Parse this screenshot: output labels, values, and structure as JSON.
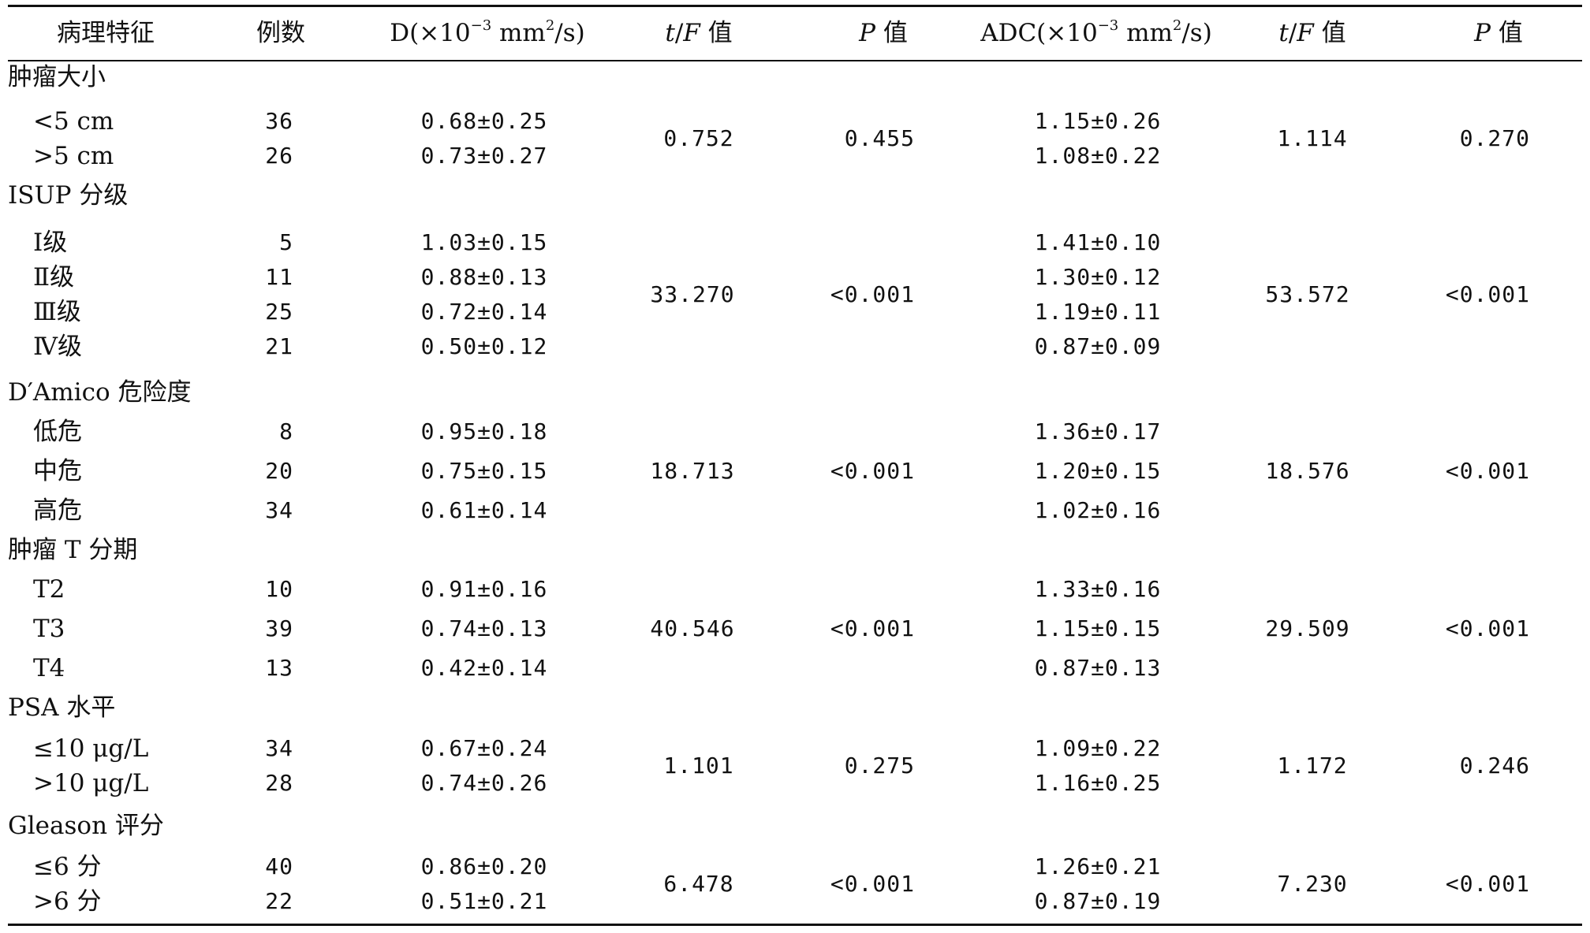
{
  "header": {
    "feature": "病理特征",
    "count": "例数",
    "d_prefix": "D(×10",
    "d_exp1": "−3",
    "d_mid": " mm",
    "d_exp2": "2",
    "d_suffix": "/s)",
    "tf1_t": "t",
    "tf1_slash": "/",
    "tf1_f": "F",
    "tf1_val": " 值",
    "p1_p": "P",
    "p1_val": " 值",
    "adc_prefix": "ADC(×10",
    "adc_exp1": "−3",
    "adc_mid": " mm",
    "adc_exp2": "2",
    "adc_suffix": "/s)",
    "tf2_t": "t",
    "tf2_slash": "/",
    "tf2_f": "F",
    "tf2_val": " 值",
    "p2_p": "P",
    "p2_val": " 值"
  },
  "groups": [
    {
      "name": "肿瘤大小",
      "t_f_d": "0.752",
      "p_d": "0.455",
      "t_f_adc": "1.114",
      "p_adc": "0.270",
      "rows": [
        {
          "label": "<5 cm",
          "n": "36",
          "d": "0.68±0.25",
          "adc": "1.15±0.26"
        },
        {
          "label": ">5 cm",
          "n": "26",
          "d": "0.73±0.27",
          "adc": "1.08±0.22"
        }
      ]
    },
    {
      "name": "ISUP 分级",
      "t_f_d": "33.270",
      "p_d": "<0.001",
      "t_f_adc": "53.572",
      "p_adc": "<0.001",
      "rows": [
        {
          "label": "Ⅰ级",
          "n": "5",
          "d": "1.03±0.15",
          "adc": "1.41±0.10"
        },
        {
          "label": "Ⅱ级",
          "n": "11",
          "d": "0.88±0.13",
          "adc": "1.30±0.12"
        },
        {
          "label": "Ⅲ级",
          "n": "25",
          "d": "0.72±0.14",
          "adc": "1.19±0.11"
        },
        {
          "label": "Ⅳ级",
          "n": "21",
          "d": "0.50±0.12",
          "adc": "0.87±0.09"
        }
      ]
    },
    {
      "name": "D′Amico 危险度",
      "t_f_d": "18.713",
      "p_d": "<0.001",
      "t_f_adc": "18.576",
      "p_adc": "<0.001",
      "rows": [
        {
          "label": "低危",
          "n": "8",
          "d": "0.95±0.18",
          "adc": "1.36±0.17"
        },
        {
          "label": "中危",
          "n": "20",
          "d": "0.75±0.15",
          "adc": "1.20±0.15"
        },
        {
          "label": "高危",
          "n": "34",
          "d": "0.61±0.14",
          "adc": "1.02±0.16"
        }
      ]
    },
    {
      "name": "肿瘤 T 分期",
      "t_f_d": "40.546",
      "p_d": "<0.001",
      "t_f_adc": "29.509",
      "p_adc": "<0.001",
      "rows": [
        {
          "label": "T2",
          "n": "10",
          "d": "0.91±0.16",
          "adc": "1.33±0.16"
        },
        {
          "label": "T3",
          "n": "39",
          "d": "0.74±0.13",
          "adc": "1.15±0.15"
        },
        {
          "label": "T4",
          "n": "13",
          "d": "0.42±0.14",
          "adc": "0.87±0.13"
        }
      ]
    },
    {
      "name": "PSA 水平",
      "t_f_d": "1.101",
      "p_d": "0.275",
      "t_f_adc": "1.172",
      "p_adc": "0.246",
      "rows": [
        {
          "label": "≤10 μg/L",
          "n": "34",
          "d": "0.67±0.24",
          "adc": "1.09±0.22"
        },
        {
          "label": ">10 μg/L",
          "n": "28",
          "d": "0.74±0.26",
          "adc": "1.16±0.25"
        }
      ]
    },
    {
      "name": "Gleason 评分",
      "t_f_d": "6.478",
      "p_d": "<0.001",
      "t_f_adc": "7.230",
      "p_adc": "<0.001",
      "rows": [
        {
          "label": "≤6 分",
          "n": "40",
          "d": "0.86±0.20",
          "adc": "1.26±0.21"
        },
        {
          "label": ">6 分",
          "n": "22",
          "d": "0.51±0.21",
          "adc": "0.87±0.19"
        }
      ]
    }
  ]
}
